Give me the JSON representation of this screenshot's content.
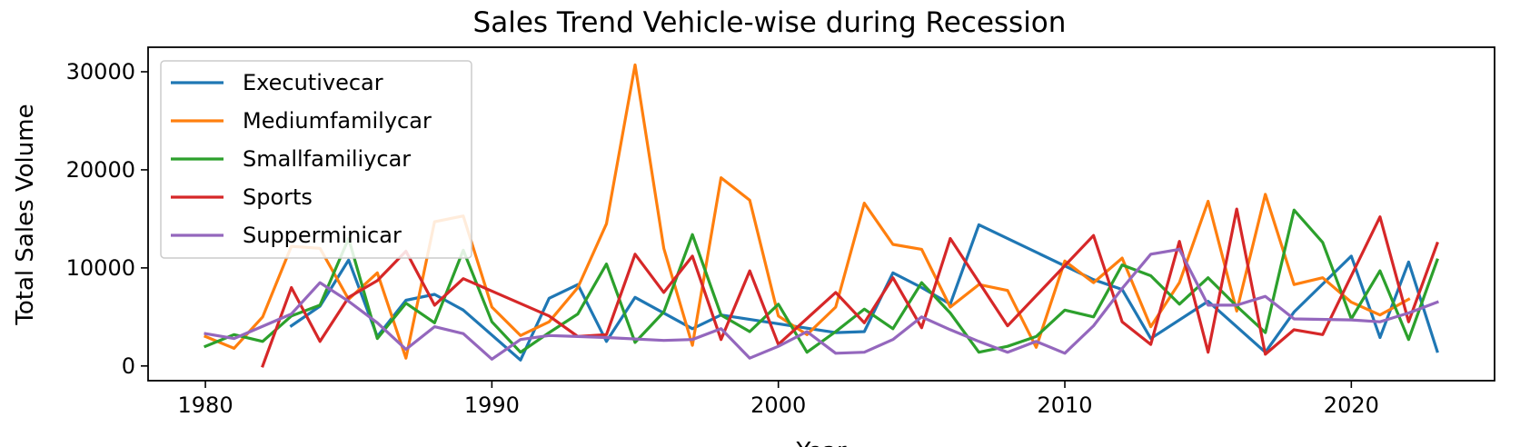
{
  "chart_data": {
    "type": "line",
    "title": "Sales Trend Vehicle-wise during Recession",
    "xlabel": "Year",
    "ylabel": "Total Sales Volume",
    "xlim": [
      1978,
      2025
    ],
    "ylim": [
      -1500,
      32500
    ],
    "xticks": [
      1980,
      1990,
      2000,
      2010,
      2020
    ],
    "yticks": [
      0,
      10000,
      20000,
      30000
    ],
    "grid": false,
    "legend_position": "top-left",
    "series": [
      {
        "name": "Executivecar",
        "color": "#1f77b4",
        "points": [
          [
            1983,
            4100
          ],
          [
            1984,
            6100
          ],
          [
            1985,
            10800
          ],
          [
            1986,
            3000
          ],
          [
            1987,
            6700
          ],
          [
            1988,
            7300
          ],
          [
            1989,
            5700
          ],
          [
            1991,
            600
          ],
          [
            1992,
            6900
          ],
          [
            1993,
            8300
          ],
          [
            1994,
            2500
          ],
          [
            1995,
            7000
          ],
          [
            1997,
            3800
          ],
          [
            1998,
            5200
          ],
          [
            2002,
            3400
          ],
          [
            2003,
            3500
          ],
          [
            2004,
            9500
          ],
          [
            2005,
            8000
          ],
          [
            2006,
            6300
          ],
          [
            2007,
            14400
          ],
          [
            2011,
            8800
          ],
          [
            2012,
            7800
          ],
          [
            2013,
            2800
          ],
          [
            2015,
            6600
          ],
          [
            2017,
            1400
          ],
          [
            2018,
            5500
          ],
          [
            2020,
            11200
          ],
          [
            2021,
            2900
          ],
          [
            2022,
            10600
          ],
          [
            2023,
            1500
          ]
        ]
      },
      {
        "name": "Mediumfamilycar",
        "color": "#ff7f0e",
        "points": [
          [
            1980,
            3000
          ],
          [
            1981,
            1800
          ],
          [
            1982,
            5000
          ],
          [
            1983,
            12200
          ],
          [
            1984,
            12000
          ],
          [
            1985,
            6800
          ],
          [
            1986,
            9500
          ],
          [
            1987,
            800
          ],
          [
            1988,
            14700
          ],
          [
            1989,
            15300
          ],
          [
            1990,
            6000
          ],
          [
            1991,
            3100
          ],
          [
            1992,
            4500
          ],
          [
            1993,
            8000
          ],
          [
            1994,
            14500
          ],
          [
            1995,
            30700
          ],
          [
            1996,
            12000
          ],
          [
            1997,
            2100
          ],
          [
            1998,
            19200
          ],
          [
            1999,
            16900
          ],
          [
            2000,
            5100
          ],
          [
            2001,
            3200
          ],
          [
            2002,
            6000
          ],
          [
            2003,
            16600
          ],
          [
            2004,
            12400
          ],
          [
            2005,
            11900
          ],
          [
            2006,
            6000
          ],
          [
            2007,
            8300
          ],
          [
            2008,
            7700
          ],
          [
            2009,
            1900
          ],
          [
            2010,
            10700
          ],
          [
            2011,
            8500
          ],
          [
            2012,
            11000
          ],
          [
            2013,
            4000
          ],
          [
            2014,
            8500
          ],
          [
            2015,
            16800
          ],
          [
            2016,
            5600
          ],
          [
            2017,
            17500
          ],
          [
            2018,
            8300
          ],
          [
            2019,
            9000
          ],
          [
            2020,
            6500
          ],
          [
            2021,
            5200
          ],
          [
            2022,
            6800
          ]
        ]
      },
      {
        "name": "Smallfamiliycar",
        "color": "#2ca02c",
        "points": [
          [
            1980,
            2000
          ],
          [
            1981,
            3200
          ],
          [
            1982,
            2500
          ],
          [
            1983,
            5100
          ],
          [
            1984,
            6200
          ],
          [
            1985,
            13000
          ],
          [
            1986,
            2800
          ],
          [
            1987,
            6400
          ],
          [
            1988,
            4400
          ],
          [
            1989,
            11800
          ],
          [
            1990,
            4500
          ],
          [
            1991,
            1400
          ],
          [
            1992,
            3400
          ],
          [
            1993,
            5300
          ],
          [
            1994,
            10400
          ],
          [
            1995,
            2400
          ],
          [
            1996,
            5500
          ],
          [
            1997,
            13400
          ],
          [
            1998,
            5200
          ],
          [
            1999,
            3500
          ],
          [
            2000,
            6300
          ],
          [
            2001,
            1400
          ],
          [
            2002,
            3500
          ],
          [
            2003,
            5800
          ],
          [
            2004,
            3800
          ],
          [
            2005,
            8500
          ],
          [
            2006,
            5400
          ],
          [
            2007,
            1400
          ],
          [
            2008,
            2000
          ],
          [
            2009,
            3000
          ],
          [
            2010,
            5700
          ],
          [
            2011,
            5000
          ],
          [
            2012,
            10300
          ],
          [
            2013,
            9200
          ],
          [
            2014,
            6300
          ],
          [
            2015,
            9000
          ],
          [
            2016,
            6100
          ],
          [
            2017,
            3400
          ],
          [
            2018,
            15900
          ],
          [
            2019,
            12600
          ],
          [
            2020,
            4800
          ],
          [
            2021,
            9700
          ],
          [
            2022,
            2700
          ],
          [
            2023,
            10800
          ]
        ]
      },
      {
        "name": "Sports",
        "color": "#d62728",
        "points": [
          [
            1982,
            0
          ],
          [
            1983,
            8000
          ],
          [
            1984,
            2500
          ],
          [
            1985,
            7000
          ],
          [
            1986,
            8700
          ],
          [
            1987,
            11700
          ],
          [
            1988,
            6200
          ],
          [
            1989,
            8900
          ],
          [
            1992,
            5100
          ],
          [
            1993,
            3000
          ],
          [
            1994,
            3200
          ],
          [
            1995,
            11400
          ],
          [
            1996,
            7500
          ],
          [
            1997,
            11200
          ],
          [
            1998,
            2700
          ],
          [
            1999,
            9700
          ],
          [
            2000,
            2200
          ],
          [
            2002,
            7500
          ],
          [
            2003,
            4400
          ],
          [
            2004,
            9000
          ],
          [
            2005,
            3900
          ],
          [
            2006,
            13000
          ],
          [
            2008,
            4100
          ],
          [
            2011,
            13300
          ],
          [
            2012,
            4500
          ],
          [
            2013,
            2200
          ],
          [
            2014,
            12700
          ],
          [
            2015,
            1400
          ],
          [
            2016,
            16000
          ],
          [
            2017,
            1200
          ],
          [
            2018,
            3700
          ],
          [
            2019,
            3200
          ],
          [
            2021,
            15200
          ],
          [
            2022,
            4500
          ],
          [
            2023,
            12500
          ]
        ]
      },
      {
        "name": "Supperminicar",
        "color": "#9467bd",
        "points": [
          [
            1980,
            3300
          ],
          [
            1981,
            2800
          ],
          [
            1983,
            5300
          ],
          [
            1984,
            8500
          ],
          [
            1985,
            6600
          ],
          [
            1986,
            4400
          ],
          [
            1987,
            1700
          ],
          [
            1988,
            4000
          ],
          [
            1989,
            3300
          ],
          [
            1990,
            700
          ],
          [
            1991,
            2700
          ],
          [
            1992,
            3100
          ],
          [
            1993,
            3000
          ],
          [
            1994,
            2900
          ],
          [
            1996,
            2600
          ],
          [
            1997,
            2700
          ],
          [
            1998,
            3800
          ],
          [
            1999,
            800
          ],
          [
            2000,
            2000
          ],
          [
            2001,
            3500
          ],
          [
            2002,
            1300
          ],
          [
            2003,
            1400
          ],
          [
            2004,
            2700
          ],
          [
            2005,
            5000
          ],
          [
            2006,
            3700
          ],
          [
            2007,
            2500
          ],
          [
            2008,
            1400
          ],
          [
            2009,
            2500
          ],
          [
            2010,
            1300
          ],
          [
            2011,
            4100
          ],
          [
            2012,
            7900
          ],
          [
            2013,
            11400
          ],
          [
            2014,
            11900
          ],
          [
            2015,
            6200
          ],
          [
            2016,
            6200
          ],
          [
            2017,
            7100
          ],
          [
            2018,
            4800
          ],
          [
            2020,
            4700
          ],
          [
            2021,
            4500
          ],
          [
            2022,
            5400
          ],
          [
            2023,
            6500
          ]
        ]
      }
    ]
  }
}
